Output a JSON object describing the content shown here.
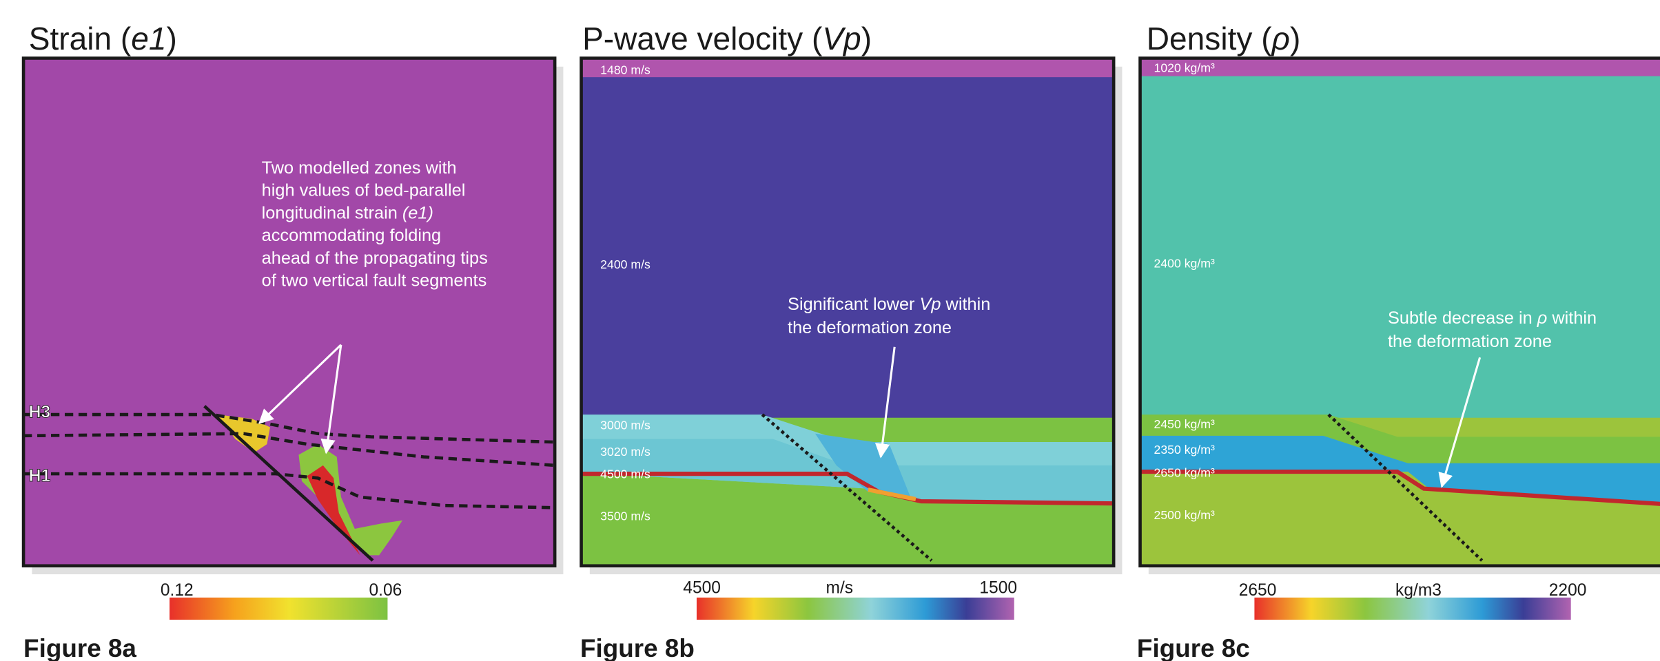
{
  "panels": [
    {
      "title": [
        "Strain (",
        "e1",
        ")"
      ],
      "annotation": [
        [
          "Two modelled zones with"
        ],
        [
          "high values of bed-parallel"
        ],
        [
          "longitudinal strain ",
          "(e1)"
        ],
        [
          "accommodating folding"
        ],
        [
          "ahead of the propagating tips"
        ],
        [
          "of two vertical fault segments"
        ]
      ],
      "horizon_labels": [
        "H3",
        "H1"
      ],
      "layer_labels": [],
      "colorbar": {
        "left_label": "0.12",
        "right_label": "0.06"
      },
      "figure_label": "Figure 8a"
    },
    {
      "title": [
        "P-wave velocity (",
        "Vp",
        ")"
      ],
      "annotation": [
        [
          "Significant lower ",
          "Vp",
          " within"
        ],
        [
          "the deformation zone"
        ]
      ],
      "horizon_labels": [],
      "layer_labels": [
        "1480 m/s",
        "2400 m/s",
        "3000 m/s",
        "3020 m/s",
        "4500 m/s",
        "3500 m/s"
      ],
      "colorbar": {
        "left_label": "4500",
        "unit": "m/s",
        "right_label": "1500"
      },
      "figure_label": "Figure 8b"
    },
    {
      "title": [
        "Density (",
        "ρ",
        ")"
      ],
      "annotation": [
        [
          "Subtle decrease in ",
          "ρ",
          " within"
        ],
        [
          "the deformation zone"
        ]
      ],
      "horizon_labels": [],
      "layer_labels": [
        "1020 kg/m³",
        "2400 kg/m³",
        "2450 kg/m³",
        "2350 kg/m³",
        "2650 kg/m³",
        "2500 kg/m³"
      ],
      "colorbar": {
        "left_label": "2650",
        "unit": "kg/m3",
        "right_label": "2200"
      },
      "figure_label": "Figure 8c"
    }
  ]
}
